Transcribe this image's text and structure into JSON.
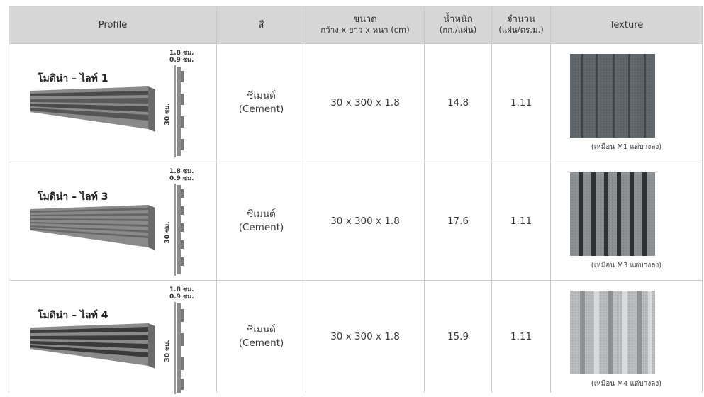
{
  "header": {
    "profile": "Profile",
    "color": "สี",
    "size_top": "ขนาด",
    "size_bottom": "กว้าง x ยาว x หนา (cm)",
    "weight_top": "น้ำหนัก",
    "weight_bottom": "(กก./แผ่น)",
    "qty_top": "จำนวน",
    "qty_bottom": "(แผ่น/ตร.ม.)",
    "texture": "Texture"
  },
  "rows": [
    {
      "name": "โมดิน่า – ไลท์ 1",
      "dim_outer": "1.8 ซม.",
      "dim_inner": "0.9 ซม.",
      "height_label": "30 ซม.",
      "color_th": "ซีเมนต์",
      "color_en": "(Cement)",
      "size": "30 x 300 x 1.8",
      "weight": "14.8",
      "qty": "1.11",
      "texture_caption": "(เหมือน M1 แต่บางลง)"
    },
    {
      "name": "โมดิน่า – ไลท์ 3",
      "dim_outer": "1.8 ซม.",
      "dim_inner": "0.9 ซม.",
      "height_label": "30 ซม.",
      "color_th": "ซีเมนต์",
      "color_en": "(Cement)",
      "size": "30 x 300 x 1.8",
      "weight": "17.6",
      "qty": "1.11",
      "texture_caption": "(เหมือน M3 แต่บางลง)"
    },
    {
      "name": "โมดิน่า – ไลท์ 4",
      "dim_outer": "1.8 ซม.",
      "dim_inner": "0.9 ซม.",
      "height_label": "30 ซม.",
      "color_th": "ซีเมนต์",
      "color_en": "(Cement)",
      "size": "30 x 300 x 1.8",
      "weight": "15.9",
      "qty": "1.11",
      "texture_caption": "(เหมือน M4 แต่บางลง)"
    }
  ],
  "colors": {
    "header_bg": "#d6d6d6",
    "border": "#c9c9c9",
    "panel_dark": "#4a4a4a",
    "panel_light": "#8a8a8a"
  }
}
